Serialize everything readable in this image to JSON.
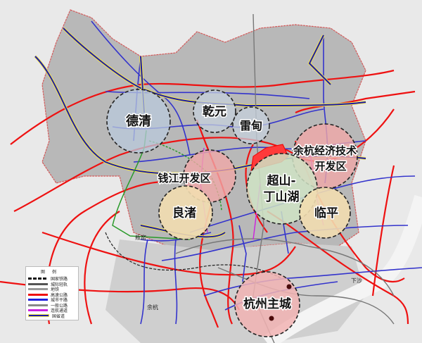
{
  "zones": [
    {
      "name": "德清",
      "fill": "#b9c9dc"
    },
    {
      "name": "乾元",
      "fill": "#c5d0dc"
    },
    {
      "name": "雷甸",
      "fill": "#c5d0dc"
    },
    {
      "name": "余杭经济技术",
      "name2": "开发区",
      "fill": "#f0a8a8"
    },
    {
      "name": "钱江开发区",
      "fill": "#f0a8a8"
    },
    {
      "name": "超山-",
      "name2": "丁山湖",
      "fill": "#cfe3c4"
    },
    {
      "name": "良渚",
      "fill": "#f2ddb0"
    },
    {
      "name": "临平",
      "fill": "#f2ddb0"
    },
    {
      "name": "杭州主城",
      "fill": "#f1b3b3"
    }
  ],
  "places": {
    "pingyao": "瓶窑",
    "yuhang": "余杭",
    "xiasha": "下沙"
  },
  "legend": {
    "title": "图例",
    "items": [
      {
        "label": "国家铁路",
        "color": "#111111",
        "style": "dashed"
      },
      {
        "label": "城际轻轨",
        "color": "#555555",
        "style": "solid"
      },
      {
        "label": "地铁",
        "color": "#999999",
        "style": "solid"
      },
      {
        "label": "高速公路",
        "color": "#ee1111",
        "style": "solid"
      },
      {
        "label": "城市干路",
        "color": "#2222dd",
        "style": "solid"
      },
      {
        "label": "一般公路",
        "color": "#888888",
        "style": "solid"
      },
      {
        "label": "连航通道",
        "color": "#cc22dd",
        "style": "solid"
      },
      {
        "label": "国省道",
        "color": "#1a1aa8",
        "style": "yellow-edged"
      }
    ]
  },
  "colors": {
    "expressway": "#ee1111",
    "arterial": "#3333cc",
    "boundary": "#d45a5a",
    "highlight": "#ff3333"
  }
}
